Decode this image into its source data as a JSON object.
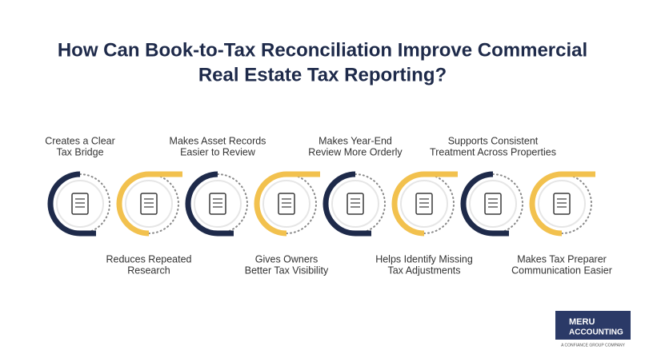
{
  "title": [
    "How Can Book-to-Tax Reconciliation Improve Commercial",
    "Real Estate Tax Reporting?"
  ],
  "items": [
    {
      "label": [
        "Creates a Clear",
        "Tax Bridge"
      ]
    },
    {
      "label": [
        "Reduces Repeated",
        "Research"
      ]
    },
    {
      "label": [
        "Makes Asset Records",
        "Easier to Review"
      ]
    },
    {
      "label": [
        "Gives Owners",
        "Better Tax Visibility"
      ]
    },
    {
      "label": [
        "Makes Year-End",
        "Review More Orderly"
      ]
    },
    {
      "label": [
        "Helps Identify Missing",
        "Tax Adjustments"
      ]
    },
    {
      "label": [
        "Supports Consistent",
        "Treatment Across Properties"
      ]
    },
    {
      "label": [
        "Makes Tax Preparer",
        "Communication Easier"
      ]
    }
  ],
  "logo": {
    "name": "MERU",
    "sub": "ACCOUNTING",
    "tagline": "A CONFIANCE GROUP COMPANY"
  }
}
